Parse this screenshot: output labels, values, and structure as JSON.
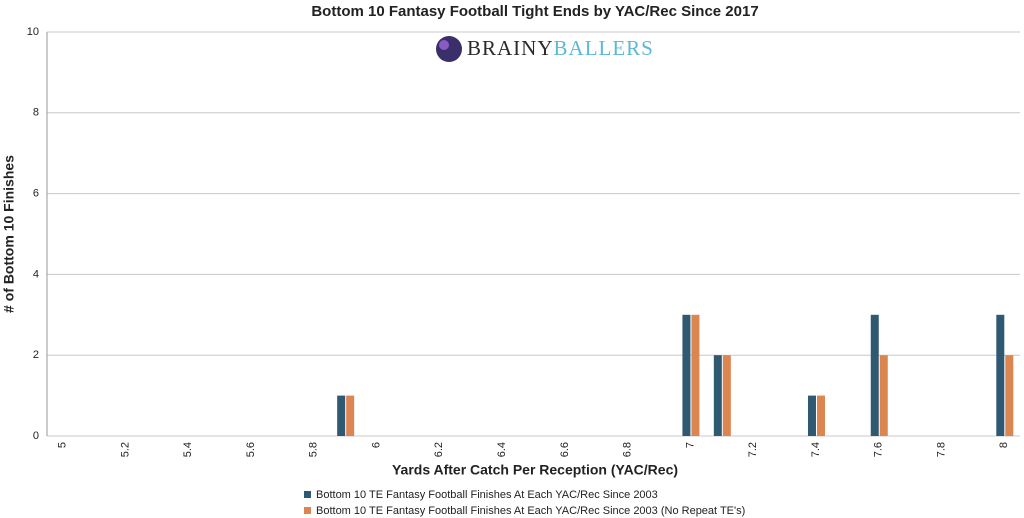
{
  "logo": {
    "first": "BRAINY",
    "second": "BALLERS"
  },
  "chart_data": {
    "type": "bar",
    "title": "Bottom 10 Fantasy Football Tight Ends by YAC/Rec Since 2017",
    "x_label": "Yards After Catch Per Reception (YAC/Rec)",
    "y_label": "# of Bottom 10 Finishes",
    "categories": [
      "5",
      null,
      "5.2",
      null,
      "5.4",
      null,
      "5.6",
      null,
      "5.8",
      null,
      "6",
      null,
      "6.2",
      null,
      "6.4",
      null,
      "6.6",
      null,
      "6.8",
      null,
      "7",
      null,
      "7.2",
      null,
      "7.4",
      null,
      "7.6",
      null,
      "7.8",
      null,
      "8"
    ],
    "series": [
      {
        "name": "Bottom 10 TE Fantasy Football Finishes At Each YAC/Rec Since 2003",
        "color": "#2f5873",
        "values": [
          0,
          0,
          0,
          0,
          0,
          0,
          0,
          0,
          0,
          1,
          0,
          0,
          0,
          0,
          0,
          0,
          0,
          0,
          0,
          0,
          3,
          2,
          0,
          0,
          1,
          0,
          3,
          0,
          0,
          0,
          3
        ]
      },
      {
        "name": "Bottom 10 TE Fantasy Football Finishes At Each YAC/Rec Since 2003 (No Repeat TE's)",
        "color": "#db8550",
        "values": [
          0,
          0,
          0,
          0,
          0,
          0,
          0,
          0,
          0,
          1,
          0,
          0,
          0,
          0,
          0,
          0,
          0,
          0,
          0,
          0,
          3,
          2,
          0,
          0,
          1,
          0,
          2,
          0,
          0,
          0,
          2
        ]
      }
    ],
    "ylim": [
      0,
      10
    ],
    "yticks": [
      0,
      2,
      4,
      6,
      8,
      10
    ],
    "grid": true
  }
}
